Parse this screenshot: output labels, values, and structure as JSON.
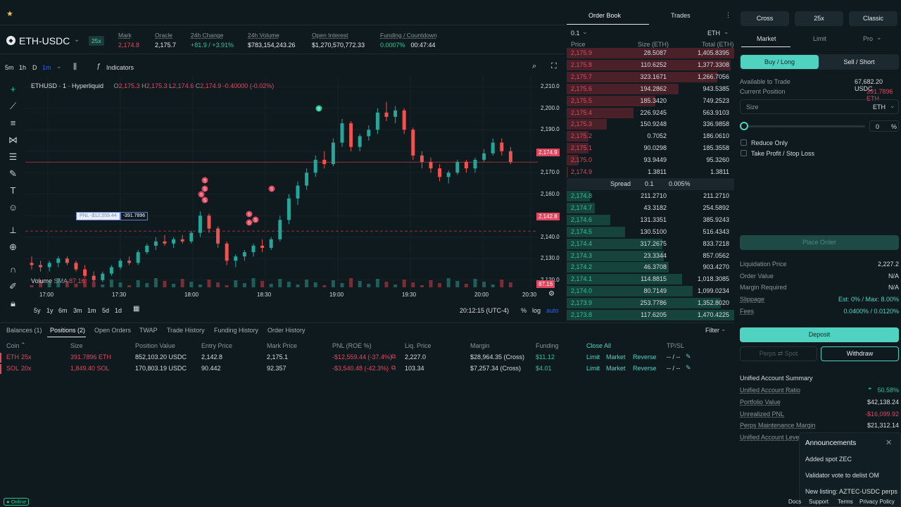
{
  "topbar": {
    "star_icon": "star-icon"
  },
  "market": {
    "symbol": "ETH-USDC",
    "leverage": "25x",
    "stats": [
      {
        "label": "Mark",
        "value": "2,174.8",
        "color": "#e0475f"
      },
      {
        "label": "Oracle",
        "value": "2,175.7",
        "color": "#e6eaec"
      },
      {
        "label": "24h Change",
        "value": "+81.9 / +3.91%",
        "color": "#26c793"
      },
      {
        "label": "24h Volume",
        "value": "$783,154,243.26",
        "color": "#e6eaec"
      },
      {
        "label": "Open Interest",
        "value": "$1,270,570,772.33",
        "color": "#e6eaec"
      },
      {
        "label": "Funding / Countdown",
        "value": "0.0007%",
        "value2": "00:47:44",
        "color": "#26c793"
      }
    ]
  },
  "charttoolbar": {
    "intervals": [
      "5m",
      "1h",
      "D",
      "1m"
    ],
    "indicators": "Indicators"
  },
  "chart": {
    "legend_title": "ETHUSD · 1 · Hyperliquid",
    "ohlc": {
      "o": "2,175.3",
      "h": "2,175.3",
      "l": "2,174.6",
      "c": "2,174.9",
      "chg": "-0.40000 (-0.02%)"
    },
    "volume_label": "Volume",
    "sma_label": "SMA",
    "sma_value": "87.16",
    "pnl_tag": "PNL -$12,559.44",
    "pos_tag": "-391.7896",
    "price_tag_current": "2,174.9",
    "price_tag_entry": "2,142.8",
    "volume_tag": "87.16",
    "yticks": [
      "2,210.0",
      "2,200.0",
      "2,190.0",
      "2,180.0",
      "2,170.0",
      "2,160.0",
      "2,150.0",
      "2,140.0",
      "2,130.0",
      "2,120.0"
    ],
    "xticks": [
      "17:00",
      "17:30",
      "18:00",
      "18:30",
      "19:00",
      "19:30",
      "20:00",
      "20:30"
    ],
    "marker_letter": "S",
    "marker_letter_b": "B"
  },
  "timenav": {
    "ranges": [
      "5y",
      "1y",
      "6m",
      "3m",
      "1m",
      "5d",
      "1d"
    ],
    "clock": "20:12:15 (UTC-4)",
    "pct": "%",
    "log": "log",
    "auto": "auto"
  },
  "orderbook": {
    "tabs": [
      "Order Book",
      "Trades"
    ],
    "tick": "0.1",
    "asset": "ETH",
    "headers": [
      "Price",
      "Size (ETH)",
      "Total (ETH)"
    ],
    "asks": [
      [
        "2,175.9",
        "28.5087",
        "1,405.8395"
      ],
      [
        "2,175.8",
        "110.6252",
        "1,377.3308"
      ],
      [
        "2,175.7",
        "323.1671",
        "1,266.7056"
      ],
      [
        "2,175.6",
        "194.2862",
        "943.5385"
      ],
      [
        "2,175.5",
        "185.3420",
        "749.2523"
      ],
      [
        "2,175.4",
        "226.9245",
        "563.9103"
      ],
      [
        "2,175.3",
        "150.9248",
        "336.9858"
      ],
      [
        "2,175.2",
        "0.7052",
        "186.0610"
      ],
      [
        "2,175.1",
        "90.0298",
        "185.3558"
      ],
      [
        "2,175.0",
        "93.9449",
        "95.3260"
      ],
      [
        "2,174.9",
        "1.3811",
        "1.3811"
      ]
    ],
    "ask_fill": [
      1.0,
      0.98,
      0.9,
      0.67,
      0.53,
      0.4,
      0.24,
      0.13,
      0.13,
      0.07,
      0.01
    ],
    "spread": {
      "label": "Spread",
      "value": "0.1",
      "pct": "0.005%"
    },
    "bids": [
      [
        "2,174.8",
        "211.2710",
        "211.2710"
      ],
      [
        "2,174.7",
        "43.3182",
        "254.5892"
      ],
      [
        "2,174.6",
        "131.3351",
        "385.9243"
      ],
      [
        "2,174.5",
        "130.5100",
        "516.4343"
      ],
      [
        "2,174.4",
        "317.2675",
        "833.7218"
      ],
      [
        "2,174.3",
        "23.3344",
        "857.0562"
      ],
      [
        "2,174.2",
        "46.3708",
        "903.4270"
      ],
      [
        "2,174.1",
        "114.8815",
        "1,018.3085"
      ],
      [
        "2,174.0",
        "80.7149",
        "1,099.0234"
      ],
      [
        "2,173.9",
        "253.7786",
        "1,352.8020"
      ],
      [
        "2,173.8",
        "117.6205",
        "1,470.4225"
      ]
    ],
    "bid_fill": [
      0.14,
      0.17,
      0.26,
      0.35,
      0.57,
      0.58,
      0.61,
      0.69,
      0.75,
      0.92,
      1.0
    ]
  },
  "bottomtabs": [
    "Balances (1)",
    "Positions (2)",
    "Open Orders",
    "TWAP",
    "Trade History",
    "Funding History",
    "Order History"
  ],
  "filter": "Filter",
  "positions": {
    "headers": [
      "Coin",
      "Size",
      "Position Value",
      "Entry Price",
      "Mark Price",
      "PNL (ROE %)",
      "Liq. Price",
      "Margin",
      "Funding",
      "Close All",
      "TP/SL"
    ],
    "rows": [
      {
        "coin": "ETH",
        "lev": "25x",
        "size": "391.7896 ETH",
        "value": "852,103.20 USDC",
        "entry": "2,142.8",
        "mark": "2,175.1",
        "pnl": "-$12,559.44 (-37.4%)",
        "liq": "2,227.0",
        "margin": "$28,964.35 (Cross)",
        "funding": "$11.12",
        "a1": "Limit",
        "a2": "Market",
        "a3": "Reverse",
        "tpsl": "-- / --"
      },
      {
        "coin": "SOL",
        "lev": "20x",
        "size": "1,849.40 SOL",
        "value": "170,803.19 USDC",
        "entry": "90.442",
        "mark": "92.357",
        "pnl": "-$3,540.48 (-42.3%)",
        "liq": "103.34",
        "margin": "$7,257.34 (Cross)",
        "funding": "$4.01",
        "a1": "Limit",
        "a2": "Market",
        "a3": "Reverse",
        "tpsl": "-- / --"
      }
    ]
  },
  "panel": {
    "margin_mode": "Cross",
    "leverage": "25x",
    "type": "Classic",
    "order_tabs": [
      "Market",
      "Limit",
      "Pro"
    ],
    "buy": "Buy / Long",
    "sell": "Sell / Short",
    "avail_label": "Available to Trade",
    "avail_value": "67,682.20 USDC",
    "pos_label": "Current Position",
    "pos_value": "391.7896 ETH",
    "size_label": "Size",
    "size_asset": "ETH",
    "slider_value": "0",
    "pct": "%",
    "reduce_only": "Reduce Only",
    "tpsl": "Take Profit / Stop Loss",
    "place_order": "Place Order",
    "info": [
      [
        "Liquidation Price",
        "2,227.2"
      ],
      [
        "Order Value",
        "N/A"
      ],
      [
        "Margin Required",
        "N/A"
      ],
      [
        "Slippage",
        "Est: 0% / Max: 8.00%"
      ],
      [
        "Fees",
        "0.0400% / 0.0120%"
      ]
    ],
    "deposit": "Deposit",
    "perps_spot": "Perps ⇄ Spot",
    "withdraw": "Withdraw",
    "summary_title": "Unified Account Summary",
    "summary": [
      [
        "Unified Account Ratio",
        "50.58%"
      ],
      [
        "Portfolio Value",
        "$42,138.24"
      ],
      [
        "Unrealized PNL",
        "-$16,099.92"
      ],
      [
        "Perps Maintenance Margin",
        "$21,312.14"
      ],
      [
        "Unified Account Lever",
        ""
      ]
    ]
  },
  "announcements": {
    "title": "Announcements",
    "items": [
      "Added spot ZEC",
      "Validator vote to delist OM",
      "New listing: AZTEC-USDC perps"
    ]
  },
  "status": {
    "online": "Online",
    "links": [
      "Docs",
      "Support",
      "Terms",
      "Privacy Policy"
    ]
  },
  "candles": [
    [
      0,
      2128,
      2131,
      2125,
      2127
    ],
    [
      1,
      2127,
      2129,
      2124,
      2126
    ],
    [
      2,
      2126,
      2129,
      2124,
      2128
    ],
    [
      3,
      2128,
      2131,
      2126,
      2130
    ],
    [
      4,
      2130,
      2131,
      2127,
      2128
    ],
    [
      5,
      2128,
      2129,
      2124,
      2125
    ],
    [
      6,
      2125,
      2127,
      2121,
      2122
    ],
    [
      7,
      2122,
      2124,
      2119,
      2120
    ],
    [
      8,
      2120,
      2124,
      2119,
      2123
    ],
    [
      9,
      2123,
      2127,
      2122,
      2126
    ],
    [
      10,
      2126,
      2130,
      2125,
      2129
    ],
    [
      11,
      2129,
      2131,
      2127,
      2128
    ],
    [
      12,
      2128,
      2134,
      2127,
      2133
    ],
    [
      13,
      2133,
      2137,
      2132,
      2136
    ],
    [
      14,
      2136,
      2140,
      2134,
      2138
    ],
    [
      15,
      2138,
      2141,
      2136,
      2137
    ],
    [
      16,
      2137,
      2140,
      2135,
      2139
    ],
    [
      17,
      2139,
      2141,
      2137,
      2138
    ],
    [
      18,
      2138,
      2143,
      2137,
      2142
    ],
    [
      19,
      2142,
      2152,
      2140,
      2150
    ],
    [
      20,
      2150,
      2151,
      2142,
      2144
    ],
    [
      21,
      2144,
      2145,
      2135,
      2137
    ],
    [
      22,
      2137,
      2138,
      2127,
      2129
    ],
    [
      23,
      2129,
      2132,
      2126,
      2131
    ],
    [
      24,
      2131,
      2134,
      2129,
      2133
    ],
    [
      25,
      2133,
      2137,
      2131,
      2136
    ],
    [
      26,
      2136,
      2139,
      2133,
      2135
    ],
    [
      27,
      2135,
      2140,
      2134,
      2139
    ],
    [
      28,
      2139,
      2150,
      2138,
      2148
    ],
    [
      29,
      2148,
      2160,
      2146,
      2158
    ],
    [
      30,
      2158,
      2166,
      2155,
      2164
    ],
    [
      31,
      2164,
      2172,
      2162,
      2170
    ],
    [
      32,
      2170,
      2178,
      2168,
      2176
    ],
    [
      33,
      2176,
      2180,
      2172,
      2174
    ],
    [
      34,
      2174,
      2186,
      2173,
      2184
    ],
    [
      35,
      2184,
      2195,
      2182,
      2193
    ],
    [
      36,
      2193,
      2194,
      2180,
      2182
    ],
    [
      37,
      2182,
      2188,
      2180,
      2187
    ],
    [
      38,
      2187,
      2192,
      2185,
      2190
    ],
    [
      39,
      2190,
      2200,
      2188,
      2198
    ],
    [
      40,
      2198,
      2203,
      2194,
      2196
    ],
    [
      41,
      2196,
      2201,
      2193,
      2199
    ],
    [
      42,
      2199,
      2200,
      2188,
      2190
    ],
    [
      43,
      2190,
      2191,
      2176,
      2178
    ],
    [
      44,
      2178,
      2180,
      2172,
      2175
    ],
    [
      45,
      2175,
      2177,
      2170,
      2172
    ],
    [
      46,
      2172,
      2174,
      2166,
      2168
    ],
    [
      47,
      2168,
      2171,
      2165,
      2170
    ],
    [
      48,
      2170,
      2176,
      2169,
      2175
    ],
    [
      49,
      2175,
      2176,
      2170,
      2172
    ],
    [
      50,
      2172,
      2177,
      2170,
      2176
    ],
    [
      51,
      2176,
      2181,
      2175,
      2179
    ],
    [
      52,
      2179,
      2186,
      2178,
      2184
    ],
    [
      53,
      2184,
      2186,
      2178,
      2180
    ],
    [
      54,
      2180,
      2182,
      2174,
      2175
    ]
  ]
}
